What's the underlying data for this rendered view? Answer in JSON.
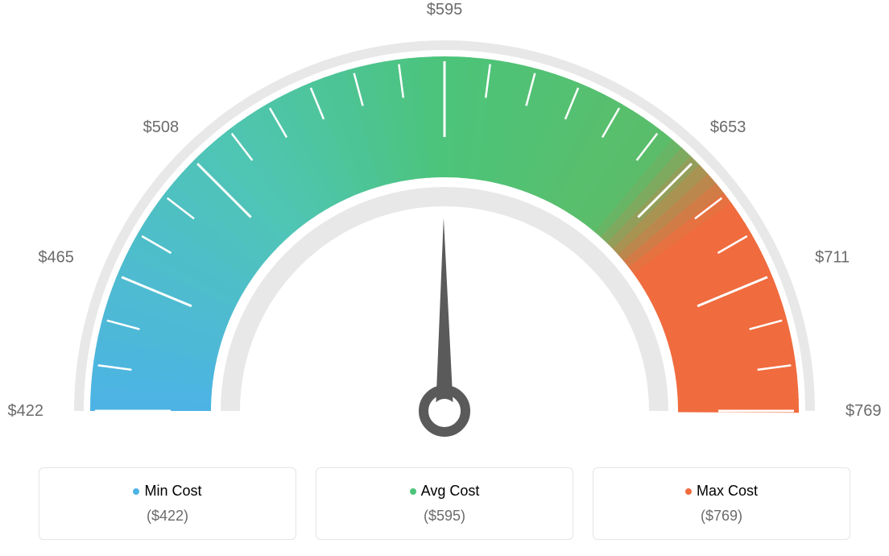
{
  "gauge": {
    "type": "gauge",
    "min_value": 422,
    "max_value": 769,
    "current_value": 595,
    "tick_values": [
      422,
      465,
      508,
      595,
      653,
      711,
      769
    ],
    "tick_labels": [
      "$422",
      "$465",
      "$508",
      "$595",
      "$653",
      "$711",
      "$769"
    ],
    "colors": {
      "blue": "#4db3e6",
      "teal": "#4fc5b5",
      "green": "#4cc47a",
      "orange": "#f06b3e",
      "outer_ring": "#e8e8e8",
      "inner_ring": "#e8e8e8",
      "needle": "#5a5a5a",
      "text": "#6b6b6b",
      "tick": "#ffffff",
      "background": "#ffffff"
    },
    "label_fontsize": 20,
    "outer_radius": 440,
    "inner_radius": 280,
    "arc_thickness": 160
  },
  "legend": {
    "items": [
      {
        "label": "Min Cost",
        "value": "($422)",
        "color": "#4db3e6"
      },
      {
        "label": "Avg Cost",
        "value": "($595)",
        "color": "#4cc47a"
      },
      {
        "label": "Max Cost",
        "value": "($769)",
        "color": "#f06b3e"
      }
    ],
    "card_border": "#e5e5e5",
    "label_fontsize": 18,
    "value_fontsize": 18,
    "value_color": "#6b6b6b"
  }
}
